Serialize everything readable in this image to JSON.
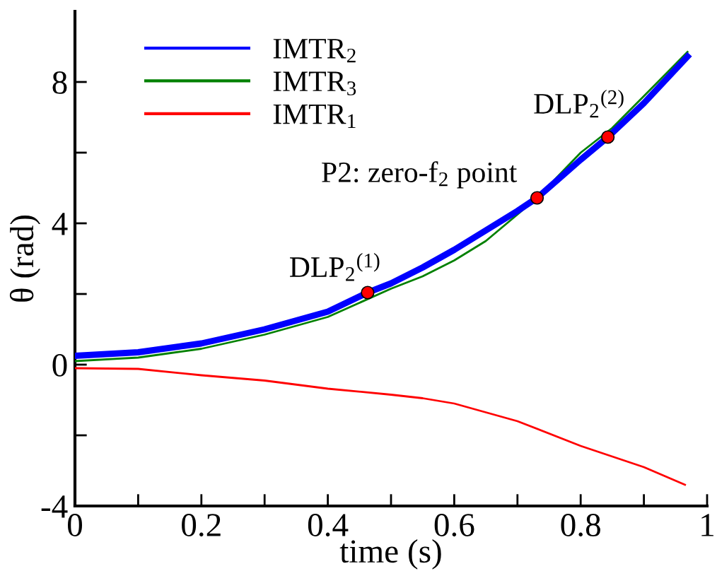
{
  "chart_data": {
    "type": "line",
    "xlabel": "time (s)",
    "ylabel": "θ (rad)",
    "xlim": [
      0,
      1
    ],
    "xticks": [
      0,
      {
        "value": 0.1,
        "label": null
      },
      0.2,
      {
        "value": 0.3,
        "label": null
      },
      0.4,
      {
        "value": 0.5,
        "label": null
      },
      0.6,
      {
        "value": 0.7,
        "label": null
      },
      0.8,
      {
        "value": 0.9,
        "label": null
      },
      1
    ],
    "ylim": [
      -4,
      10
    ],
    "yticks": [
      -4,
      {
        "value": -2,
        "label": null
      },
      0,
      {
        "value": 2,
        "label": null
      },
      4,
      {
        "value": 6,
        "label": null
      },
      8
    ],
    "grid": false,
    "legend": "top left",
    "marker": "none",
    "line_style": "solid",
    "series": [
      {
        "name": "IMTR$_{2}$",
        "color": "#0000ff",
        "x": [
          0,
          0.1,
          0.2,
          0.3,
          0.4,
          0.463,
          0.5,
          0.55,
          0.6,
          0.65,
          0.7,
          0.731,
          0.8,
          0.843,
          0.9,
          0.969
        ],
        "values": [
          0.25,
          0.35,
          0.6,
          1.0,
          1.5,
          2.04,
          2.3,
          2.75,
          3.25,
          3.8,
          4.35,
          4.72,
          5.8,
          6.44,
          7.4,
          8.72
        ]
      },
      {
        "name": "IMTR$_{3}$",
        "color": "#008000",
        "x": [
          0,
          0.1,
          0.2,
          0.3,
          0.4,
          0.5,
          0.55,
          0.6,
          0.65,
          0.7,
          0.731,
          0.8,
          0.85,
          0.9,
          0.969
        ],
        "values": [
          0.1,
          0.2,
          0.45,
          0.85,
          1.35,
          2.15,
          2.5,
          2.95,
          3.5,
          4.25,
          4.72,
          6.0,
          6.7,
          7.6,
          8.85
        ]
      },
      {
        "name": "IMTR$_{1}$",
        "color": "#ff0000",
        "x": [
          0,
          0.1,
          0.2,
          0.3,
          0.4,
          0.5,
          0.55,
          0.6,
          0.7,
          0.8,
          0.9,
          0.965
        ],
        "values": [
          -0.1,
          -0.12,
          -0.3,
          -0.45,
          -0.68,
          -0.85,
          -0.95,
          -1.1,
          -1.6,
          -2.3,
          -2.9,
          -3.4
        ]
      },
      {
        "type": "scatter",
        "color": "#ff0000",
        "marker": "circle",
        "x": [
          0.463,
          0.731,
          0.843
        ],
        "values": [
          2.04,
          4.72,
          6.44
        ]
      }
    ],
    "annotations": [
      {
        "text": "DLP$_{2}$$^{(1)}$",
        "x": 0.463,
        "y": 2.04
      },
      {
        "text": "P2: zero-f$_{2}$ point",
        "x": 0.731,
        "y": 4.72
      },
      {
        "text": "DLP$_{2}$$^{(2)}$",
        "x": 0.843,
        "y": 6.44
      }
    ]
  }
}
